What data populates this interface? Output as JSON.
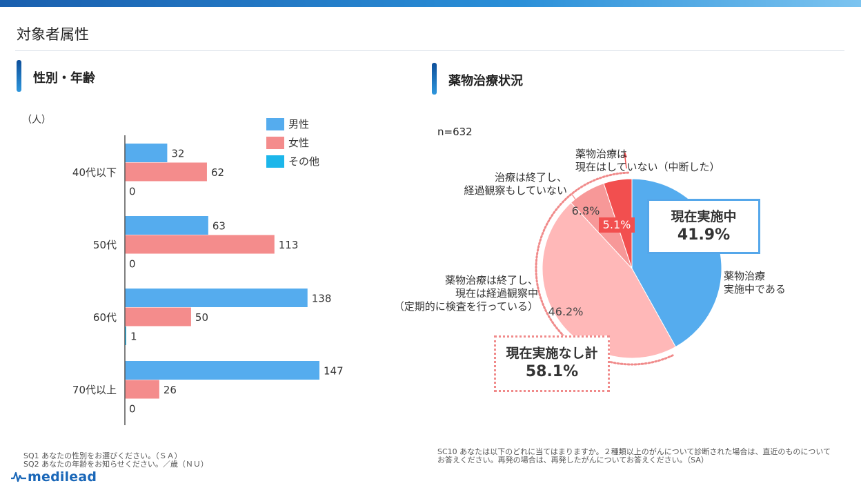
{
  "page": {
    "title": "対象者属性",
    "logo_text": "medilead"
  },
  "left": {
    "section_title": "性別・年齢",
    "unit_label": "（人）",
    "notes": [
      "SQ1  あなたの性別をお選びください。（ＳＡ）",
      "SQ2  あなたの年齢をお知らせください。／歳（ＮＵ）"
    ]
  },
  "right": {
    "section_title": "薬物治療状況",
    "n_label": "n=632",
    "box_current": {
      "line1": "現在実施中",
      "line2": "41.9%"
    },
    "box_none": {
      "line1": "現在実施なし計",
      "line2": "58.1%"
    },
    "callouts": {
      "current": [
        "薬物治療",
        "実施中である"
      ],
      "observed": [
        "薬物治療は終了し、",
        "現在は経過観察中",
        "（定期的に検査を行っている）"
      ],
      "not_observed": [
        "治療は終了し、",
        "経過観察もしていない"
      ],
      "interrupted": [
        "薬物治療は",
        "現在はしていない（中断した）"
      ]
    },
    "notes": [
      "SC10  あなたは以下のどれに当てはまりますか。２種類以上のがんについて診断された場合は、直近のものについて",
      "お答えください。再発の場合は、再発したがんについてお答えください。（SA）"
    ]
  },
  "colors": {
    "male": "#55acee",
    "female": "#f48c8c",
    "other": "#1cb6ea",
    "pie_current": "#55acee",
    "pie_observed": "#ffb8b8",
    "pie_not_observed": "#f79898",
    "pie_interrupted": "#f24f4f"
  },
  "chart_data": [
    {
      "type": "bar",
      "orientation": "horizontal",
      "categories": [
        "40代以下",
        "50代",
        "60代",
        "70代以上"
      ],
      "series": [
        {
          "name": "男性",
          "values": [
            32,
            63,
            138,
            147
          ]
        },
        {
          "name": "女性",
          "values": [
            62,
            113,
            50,
            26
          ]
        },
        {
          "name": "その他",
          "values": [
            0,
            0,
            1,
            0
          ]
        }
      ],
      "xlim": [
        0,
        160
      ],
      "grid": false,
      "legend": "top-right"
    },
    {
      "type": "pie",
      "slices": [
        {
          "label": "薬物治療実施中である",
          "value": 41.9,
          "label_text": ""
        },
        {
          "label": "薬物治療は終了し、現在は経過観察中（定期的に検査を行っている）",
          "value": 46.2,
          "label_text": "46.2%"
        },
        {
          "label": "治療は終了し、経過観察もしていない",
          "value": 6.8,
          "label_text": "6.8%"
        },
        {
          "label": "薬物治療は現在はしていない（中断した）",
          "value": 5.1,
          "label_text": "5.1%"
        }
      ]
    }
  ]
}
